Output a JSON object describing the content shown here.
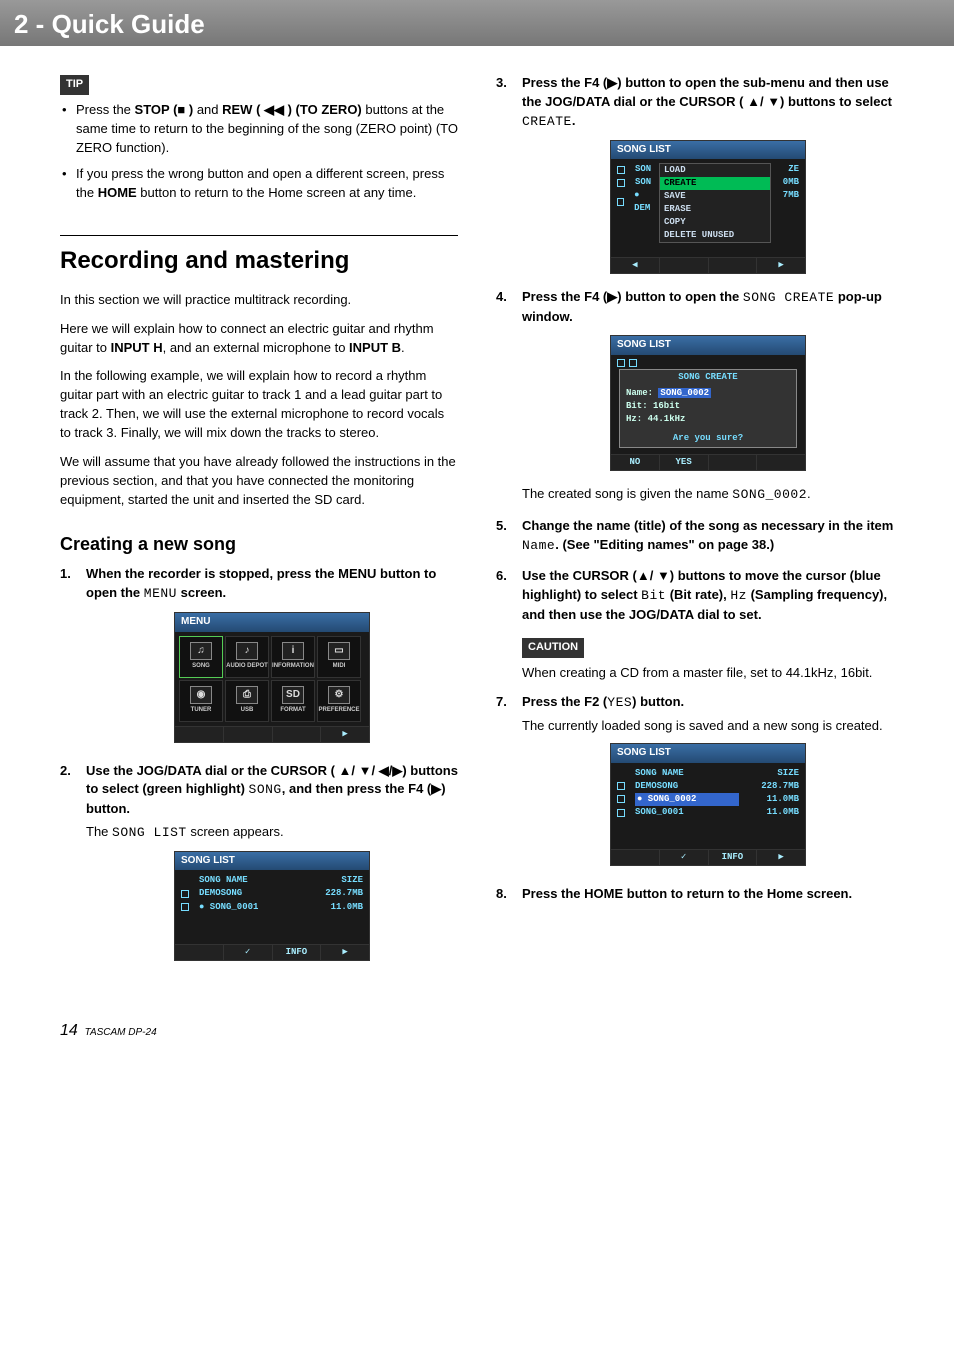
{
  "header": {
    "title": "2 - Quick Guide"
  },
  "tip": {
    "label": "TIP",
    "items": [
      "Press the <b>STOP (■ )</b>  and <b>REW ( ◀◀ ) (TO ZERO)</b> buttons at the same time to return to the beginning of the song (ZERO point) (TO ZERO function).",
      "If you press the wrong button and open a different screen, press the <b>HOME</b> button to return to the Home screen at any time."
    ]
  },
  "section_title": "Recording and mastering",
  "paras": [
    "In this section we will practice multitrack recording.",
    "Here we will explain how to connect an electric guitar and rhythm guitar to <b>INPUT H</b>, and an external microphone to <b>INPUT B</b>.",
    "In the following example, we will explain how to record a rhythm guitar part with an electric guitar to track 1 and a lead guitar part to track 2. Then, we will use the external microphone to record vocals to track 3. Finally, we will mix down the tracks to stereo.",
    "We will assume that you have already followed the instructions in the previous section, and that you have connected the monitoring equipment, started the unit and inserted the SD card."
  ],
  "sub_title": "Creating a new song",
  "steps_left": [
    {
      "html": "When the recorder is stopped, press the MENU button to open the <span class='mono'>MENU</span> screen."
    },
    {
      "html": "Use the JOG/DATA dial or the CURSOR ( ▲/ ▼/ ◀/▶) buttons to select (green highlight) <span class='mono'>SONG</span>, and then press the F4 (▶) button.",
      "plain": "The <span class='mono'>SONG LIST</span> screen appears."
    }
  ],
  "steps_right": [
    {
      "n": 3,
      "html": "Press the F4 (▶) button to open the sub-menu and then use the JOG/DATA dial or the CURSOR ( ▲/ ▼) buttons to select <span class='mono'>CREATE</span>."
    },
    {
      "n": 4,
      "html": "Press the F4 (▶) button to open the <span class='mono'>SONG CREATE</span> pop-up window.",
      "plain": "The created song is given the name <span class='mono'>SONG_0002</span>."
    },
    {
      "n": 5,
      "html": "Change the name (title) of the song as necessary in the item <span class='mono'>Name</span>. (See \"Editing names\" on page 38.)"
    },
    {
      "n": 6,
      "html": "Use the CURSOR (▲/ ▼) buttons to move the cursor (blue highlight) to select <span class='mono'>Bit</span> (Bit rate), <span class='mono'>Hz</span> (Sampling frequency), and then use the JOG/DATA dial to set."
    }
  ],
  "caution": {
    "label": "CAUTION",
    "text": "When creating a CD from a master file, set to 44.1kHz, 16bit."
  },
  "steps_right2": [
    {
      "n": 7,
      "html": "Press the F2 (<span class='mono'>YES</span>) button.",
      "plain": "The currently loaded song is saved and a new song is created."
    },
    {
      "n": 8,
      "html": "Press the HOME button to return to the Home screen."
    }
  ],
  "menu_shot": {
    "title": "MENU",
    "cells": [
      "SONG",
      "AUDIO DEPOT",
      "INFORMATION",
      "MIDI",
      "TUNER",
      "USB",
      "FORMAT",
      "PREFERENCE"
    ],
    "icons": [
      "♫",
      "♪",
      "i",
      "▭",
      "◉",
      "⎙",
      "SD",
      "⚙"
    ]
  },
  "songlist1": {
    "title": "SONG LIST",
    "cols": [
      "SONG NAME",
      "SIZE"
    ],
    "rows": [
      [
        "DEMOSONG",
        "228.7MB"
      ],
      [
        "● SONG_0001",
        "11.0MB"
      ]
    ],
    "footer": [
      "",
      "✓",
      "INFO",
      "▶"
    ]
  },
  "submenu_shot": {
    "title": "SONG LIST",
    "items": [
      "LOAD",
      "CREATE",
      "SAVE",
      "ERASE",
      "COPY",
      "DELETE UNUSED"
    ],
    "hl": "CREATE",
    "right": [
      "ZE",
      "0MB",
      "7MB"
    ],
    "left_labels": [
      "SON",
      "SON",
      "● DEM"
    ],
    "footer": [
      "◀",
      "",
      "",
      "▶"
    ]
  },
  "create_shot": {
    "title": "SONG LIST",
    "ptitle": "SONG CREATE",
    "name_label": "Name:",
    "name_value": "SONG_0002",
    "bit": "Bit: 16bit",
    "hz": "Hz: 44.1kHz",
    "confirm": "Are you sure?",
    "footer": [
      "NO",
      "YES",
      "",
      ""
    ]
  },
  "songlist2": {
    "title": "SONG LIST",
    "cols": [
      "SONG NAME",
      "SIZE"
    ],
    "rows": [
      [
        "DEMOSONG",
        "228.7MB"
      ],
      [
        "● SONG_0002",
        "11.0MB"
      ],
      [
        "SONG_0001",
        "11.0MB"
      ]
    ],
    "hl_row": 1,
    "footer": [
      "",
      "✓",
      "INFO",
      "▶"
    ]
  },
  "footer": {
    "page": "14",
    "model": "TASCAM DP-24"
  }
}
